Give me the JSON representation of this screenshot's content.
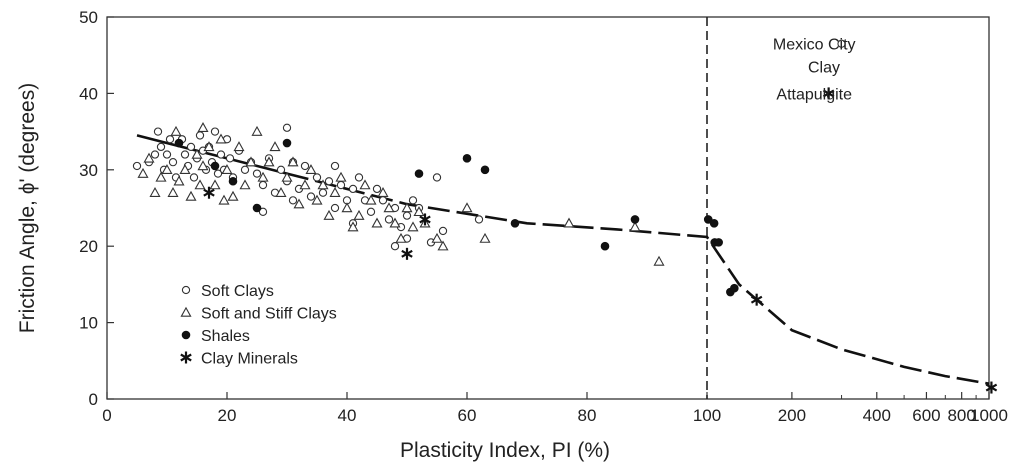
{
  "chart_data": {
    "type": "scatter",
    "title": "",
    "xlabel": "Plasticity Index, PI (%)",
    "ylabel": "Friction Angle, ϕ' (degrees)",
    "ylim": [
      0,
      50
    ],
    "yticks": [
      0,
      10,
      20,
      30,
      40,
      50
    ],
    "x_scale_note": "linear from 0 to 100, logarithmic from 100 to 1000",
    "xlim_linear": [
      0,
      100
    ],
    "xlim_log": [
      100,
      1000
    ],
    "xticks_linear": [
      "0",
      "20",
      "40",
      "60",
      "80",
      "100"
    ],
    "xticks_log": [
      {
        "value": 200,
        "label": "200"
      },
      {
        "value": 400,
        "label": "400"
      },
      {
        "value": 600,
        "label": "600"
      },
      {
        "value": 800,
        "label": "800"
      },
      {
        "value": 1000,
        "label": "1000"
      }
    ],
    "xticks_log_minor": [
      300,
      500,
      700,
      900
    ],
    "grid": false,
    "legend_position": "lower-left",
    "series": [
      {
        "name": "Soft Clays",
        "marker": "open-circle",
        "points": [
          [
            5,
            30.5
          ],
          [
            7,
            31
          ],
          [
            8,
            32
          ],
          [
            8.5,
            35
          ],
          [
            9,
            33
          ],
          [
            9.5,
            30
          ],
          [
            10,
            32
          ],
          [
            10.5,
            34
          ],
          [
            11,
            31
          ],
          [
            11.5,
            29
          ],
          [
            12,
            33.5
          ],
          [
            12.5,
            34
          ],
          [
            13,
            32
          ],
          [
            13.5,
            30.5
          ],
          [
            14,
            33
          ],
          [
            14.5,
            29
          ],
          [
            15,
            31.5
          ],
          [
            15.5,
            34.5
          ],
          [
            16,
            32.5
          ],
          [
            16.5,
            30
          ],
          [
            17,
            33
          ],
          [
            17.5,
            31
          ],
          [
            18,
            35
          ],
          [
            18.5,
            29.5
          ],
          [
            19,
            32
          ],
          [
            19.5,
            30
          ],
          [
            20,
            34
          ],
          [
            20.5,
            31.5
          ],
          [
            21,
            29
          ],
          [
            22,
            32.5
          ],
          [
            23,
            30
          ],
          [
            24,
            31
          ],
          [
            25,
            29.5
          ],
          [
            26,
            28
          ],
          [
            26,
            24.5
          ],
          [
            27,
            31.5
          ],
          [
            28,
            27
          ],
          [
            29,
            30
          ],
          [
            30,
            28.5
          ],
          [
            30,
            35.5
          ],
          [
            31,
            26
          ],
          [
            31,
            31
          ],
          [
            32,
            27.5
          ],
          [
            33,
            30.5
          ],
          [
            34,
            26.5
          ],
          [
            35,
            29
          ],
          [
            36,
            27
          ],
          [
            37,
            28.5
          ],
          [
            38,
            25
          ],
          [
            38,
            30.5
          ],
          [
            39,
            28
          ],
          [
            40,
            26
          ],
          [
            41,
            27.5
          ],
          [
            41,
            23
          ],
          [
            42,
            29
          ],
          [
            43,
            26
          ],
          [
            44,
            24.5
          ],
          [
            45,
            27.5
          ],
          [
            46,
            26
          ],
          [
            47,
            23.5
          ],
          [
            48,
            25
          ],
          [
            48,
            20
          ],
          [
            49,
            22.5
          ],
          [
            50,
            24
          ],
          [
            50,
            21
          ],
          [
            51,
            26
          ],
          [
            52,
            25
          ],
          [
            54,
            20.5
          ],
          [
            55,
            29
          ],
          [
            56,
            22
          ],
          [
            62,
            23.5
          ]
        ]
      },
      {
        "name": "Soft and Stiff Clays",
        "marker": "open-triangle",
        "points": [
          [
            6,
            29.5
          ],
          [
            7,
            31.5
          ],
          [
            8,
            27
          ],
          [
            9,
            29
          ],
          [
            10,
            30
          ],
          [
            11,
            27
          ],
          [
            11.5,
            35
          ],
          [
            12,
            28.5
          ],
          [
            13,
            30
          ],
          [
            14,
            26.5
          ],
          [
            15,
            32
          ],
          [
            15.5,
            28
          ],
          [
            16,
            35.5
          ],
          [
            16,
            30.5
          ],
          [
            17,
            33
          ],
          [
            18,
            28
          ],
          [
            19,
            34
          ],
          [
            19.5,
            26
          ],
          [
            20,
            30
          ],
          [
            21,
            26.5
          ],
          [
            22,
            33
          ],
          [
            23,
            28
          ],
          [
            24,
            31
          ],
          [
            25,
            35
          ],
          [
            26,
            29
          ],
          [
            27,
            31
          ],
          [
            28,
            33
          ],
          [
            29,
            27
          ],
          [
            30,
            29
          ],
          [
            31,
            31
          ],
          [
            32,
            25.5
          ],
          [
            33,
            28
          ],
          [
            34,
            30
          ],
          [
            35,
            26
          ],
          [
            36,
            28
          ],
          [
            37,
            24
          ],
          [
            38,
            27
          ],
          [
            39,
            29
          ],
          [
            40,
            25
          ],
          [
            41,
            22.5
          ],
          [
            42,
            24
          ],
          [
            43,
            28
          ],
          [
            44,
            26
          ],
          [
            45,
            23
          ],
          [
            46,
            27
          ],
          [
            47,
            25
          ],
          [
            48,
            23
          ],
          [
            49,
            21
          ],
          [
            50,
            25
          ],
          [
            51,
            22.5
          ],
          [
            52,
            24.5
          ],
          [
            53,
            23
          ],
          [
            55,
            21
          ],
          [
            56,
            20
          ],
          [
            60,
            25
          ],
          [
            63,
            21
          ],
          [
            77,
            23
          ],
          [
            88,
            22.5
          ],
          [
            92,
            18
          ]
        ]
      },
      {
        "name": "Shales",
        "marker": "filled-circle",
        "points": [
          [
            12,
            33.5
          ],
          [
            18,
            30.5
          ],
          [
            21,
            28.5
          ],
          [
            25,
            25
          ],
          [
            30,
            33.5
          ],
          [
            52,
            29.5
          ],
          [
            60,
            31.5
          ],
          [
            63,
            30
          ],
          [
            68,
            23
          ],
          [
            83,
            20
          ],
          [
            88,
            23.5
          ],
          [
            101,
            23.5
          ],
          [
            106,
            23
          ],
          [
            106.5,
            20.5
          ],
          [
            110,
            20.5
          ],
          [
            121,
            14
          ],
          [
            125,
            14.5
          ]
        ]
      },
      {
        "name": "Clay Minerals",
        "marker": "asterisk",
        "points": [
          [
            17,
            27
          ],
          [
            50,
            19
          ],
          [
            53,
            23.5
          ],
          [
            150,
            13
          ],
          [
            1020,
            1.5
          ]
        ]
      },
      {
        "name": "Mexico City Clay",
        "marker": "open-circle",
        "points": [
          [
            300,
            46.5
          ]
        ]
      },
      {
        "name": "Attapulgite",
        "marker": "asterisk",
        "points": [
          [
            270,
            40
          ]
        ]
      }
    ],
    "trend_curve": [
      [
        5,
        34.5
      ],
      [
        15,
        32.5
      ],
      [
        30,
        29.5
      ],
      [
        50,
        25.5
      ],
      [
        70,
        23
      ],
      [
        85,
        22.2
      ],
      [
        100,
        21.2
      ],
      [
        130,
        15
      ],
      [
        200,
        9
      ],
      [
        300,
        6.5
      ],
      [
        500,
        4.2
      ],
      [
        700,
        3
      ],
      [
        1000,
        2
      ]
    ],
    "vertical_reference_x": 100,
    "annotations": [
      {
        "text": "Mexico City",
        "at": [
          240,
          46.5
        ]
      },
      {
        "text": "Clay",
        "at": [
          260,
          43.5
        ]
      },
      {
        "text": "Attapulgite",
        "at": [
          240,
          40
        ]
      }
    ],
    "legend": [
      {
        "label": "Soft Clays",
        "marker": "open-circle"
      },
      {
        "label": "Soft and Stiff Clays",
        "marker": "open-triangle"
      },
      {
        "label": "Shales",
        "marker": "filled-circle"
      },
      {
        "label": "Clay Minerals",
        "marker": "asterisk"
      }
    ]
  }
}
